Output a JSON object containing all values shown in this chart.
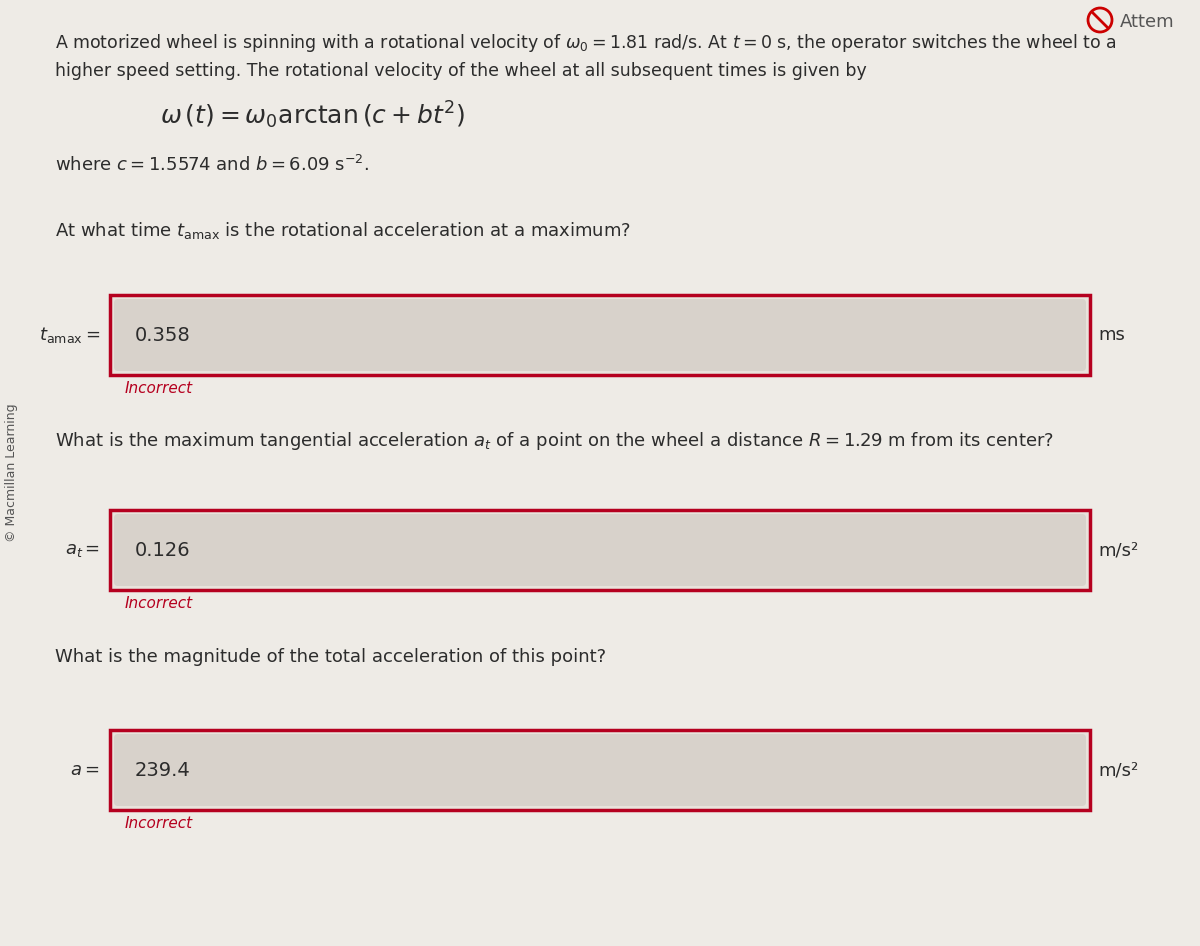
{
  "bg_color": "#eeebe6",
  "text_color": "#2c2c2c",
  "sidebar_text": "© Macmillan Learning",
  "top_right_text": "Attem",
  "line1": "A motorized wheel is spinning with a rotational velocity of $\\omega_0 = 1.81$ rad/s. At $t = 0$ s, the operator switches the wheel to a",
  "line2": "higher speed setting. The rotational velocity of the wheel at all subsequent times is given by",
  "formula": "$\\omega\\,(t) = \\omega_0\\mathrm{arctan}\\,(c + bt^2)$",
  "where_line": "where $c = 1.5574$ and $b = 6.09\\ \\mathrm{s}^{-2}$.",
  "q1": "At what time $t_{\\mathrm{amax}}$ is the rotational acceleration at a maximum?",
  "label1": "$t_{\\mathrm{amax}} =$",
  "value1": "0.358",
  "unit1": "ms",
  "incorrect1": "Incorrect",
  "q2": "What is the maximum tangential acceleration $a_t$ of a point on the wheel a distance $R = 1.29$ m from its center?",
  "label2": "$a_t =$",
  "value2": "0.126",
  "unit2": "m/s²",
  "incorrect2": "Incorrect",
  "q3": "What is the magnitude of the total acceleration of this point?",
  "label3": "$a =$",
  "value3": "239.4",
  "unit3": "m/s²",
  "incorrect3": "Incorrect",
  "box_border_color": "#b5001f",
  "inner_box_color": "#d8d2cb",
  "incorrect_color": "#b5001f",
  "outer_box_fill": "#e8e3dc"
}
